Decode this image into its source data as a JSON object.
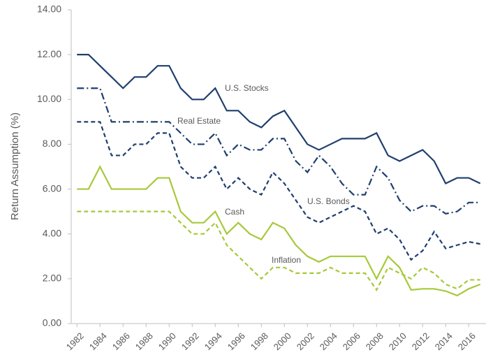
{
  "chart_data": {
    "type": "line",
    "y_label": "Return Assumption (%)",
    "x": [
      1982,
      1983,
      1984,
      1985,
      1986,
      1987,
      1988,
      1989,
      1990,
      1991,
      1992,
      1993,
      1994,
      1995,
      1996,
      1997,
      1998,
      1999,
      2000,
      2001,
      2002,
      2003,
      2004,
      2005,
      2006,
      2007,
      2008,
      2009,
      2010,
      2011,
      2012,
      2013,
      2014,
      2015,
      2016,
      2017
    ],
    "xlim": [
      1981.5,
      2017.5
    ],
    "xticks": [
      1982,
      1984,
      1986,
      1988,
      1990,
      1992,
      1994,
      1996,
      1998,
      2000,
      2002,
      2004,
      2006,
      2008,
      2010,
      2012,
      2014,
      2016
    ],
    "ylim": [
      0,
      14
    ],
    "yticks": [
      {
        "value": 0,
        "label": "0.00"
      },
      {
        "value": 2,
        "label": "2.00"
      },
      {
        "value": 4,
        "label": "4.00"
      },
      {
        "value": 6,
        "label": "6.00"
      },
      {
        "value": 8,
        "label": "8.00"
      },
      {
        "value": 10,
        "label": "10.00"
      },
      {
        "value": 12,
        "label": "12.00"
      },
      {
        "value": 14,
        "label": "14.00"
      }
    ],
    "grid": false,
    "series": [
      {
        "name": "U.S. Stocks",
        "color": "#1f3f6e",
        "style": "solid",
        "values": [
          12,
          12,
          11.5,
          11,
          10.5,
          11,
          11,
          11.5,
          11.5,
          10.5,
          10,
          10,
          10.5,
          9.5,
          9.5,
          9,
          8.75,
          9.25,
          9.5,
          8.75,
          8,
          7.75,
          8,
          8.25,
          8.25,
          8.25,
          8.5,
          7.5,
          7.25,
          7.5,
          7.75,
          7.25,
          6.25,
          6.5,
          6.5,
          6.25
        ]
      },
      {
        "name": "Real Estate",
        "color": "#1f3f6e",
        "style": "dashdot",
        "values": [
          10.5,
          10.5,
          10.5,
          9,
          9,
          9,
          9,
          9,
          9,
          8.5,
          8,
          8,
          8.5,
          7.5,
          8,
          7.75,
          7.75,
          8.25,
          8.25,
          7.25,
          6.75,
          7.5,
          7,
          6.25,
          5.75,
          5.75,
          7,
          6.5,
          5.5,
          5,
          5.25,
          5.25,
          4.9,
          5,
          5.4,
          5.4
        ]
      },
      {
        "name": "U.S. Bonds",
        "color": "#1f3f6e",
        "style": "dashed",
        "values": [
          9,
          9,
          9,
          7.5,
          7.5,
          8,
          8,
          8.5,
          8.5,
          7,
          6.5,
          6.5,
          7,
          6,
          6.5,
          6,
          5.75,
          6.75,
          6.25,
          5.5,
          4.75,
          4.5,
          4.75,
          5,
          5.25,
          5,
          4,
          4.25,
          3.75,
          2.85,
          3.25,
          4.1,
          3.35,
          3.5,
          3.65,
          3.55
        ]
      },
      {
        "name": "Cash",
        "color": "#a6c93a",
        "style": "solid",
        "values": [
          6,
          6,
          7,
          6,
          6,
          6,
          6,
          6.5,
          6.5,
          5,
          4.5,
          4.5,
          5,
          4,
          4.5,
          4,
          3.75,
          4.5,
          4.25,
          3.5,
          3,
          2.75,
          3,
          3,
          3,
          3,
          2,
          3,
          2.5,
          1.5,
          1.55,
          1.55,
          1.45,
          1.25,
          1.55,
          1.75
        ]
      },
      {
        "name": "Inflation",
        "color": "#a6c93a",
        "style": "dashed",
        "values": [
          5,
          5,
          5,
          5,
          5,
          5,
          5,
          5,
          5,
          4.5,
          4,
          4,
          4.5,
          3.5,
          3,
          2.5,
          2,
          2.5,
          2.5,
          2.25,
          2.25,
          2.25,
          2.5,
          2.25,
          2.25,
          2.25,
          1.5,
          2.5,
          2.25,
          2,
          2.5,
          2.25,
          1.75,
          1.55,
          1.95,
          1.95
        ]
      }
    ]
  }
}
